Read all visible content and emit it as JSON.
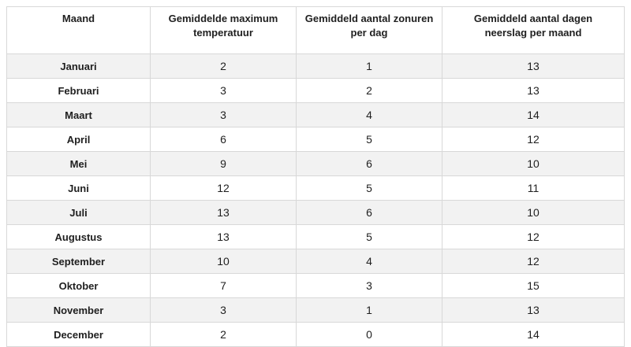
{
  "colors": {
    "page_background": "#ffffff",
    "stripe_row": "#f2f2f2",
    "border": "#d8d8d8",
    "text": "#1f1f1f"
  },
  "chart_data": {
    "type": "table",
    "title": "",
    "columns": [
      "Maand",
      "Gemiddelde maximum temperatuur",
      "Gemiddeld aantal zonuren per dag",
      "Gemiddeld aantal dagen neerslag per maand"
    ],
    "rows": [
      [
        "Januari",
        2,
        1,
        13
      ],
      [
        "Februari",
        3,
        2,
        13
      ],
      [
        "Maart",
        3,
        4,
        14
      ],
      [
        "April",
        6,
        5,
        12
      ],
      [
        "Mei",
        9,
        6,
        10
      ],
      [
        "Juni",
        12,
        5,
        11
      ],
      [
        "Juli",
        13,
        6,
        10
      ],
      [
        "Augustus",
        13,
        5,
        12
      ],
      [
        "September",
        10,
        4,
        12
      ],
      [
        "Oktober",
        7,
        3,
        15
      ],
      [
        "November",
        3,
        1,
        13
      ],
      [
        "December",
        2,
        0,
        14
      ]
    ],
    "layout": {
      "striped_rows": "odd (1st, 3rd, 5th, ...)",
      "header_alignment": "top-center",
      "cell_alignment": "center"
    }
  }
}
